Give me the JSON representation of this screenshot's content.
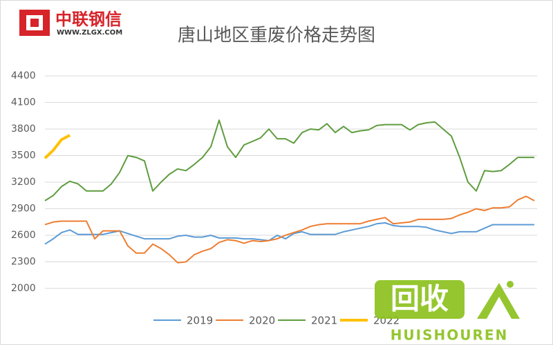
{
  "logo": {
    "name": "中联钢信",
    "url": "WWW.ZLGX.COM"
  },
  "watermark": {
    "mark": "回收",
    "brand": "HUISHOUREN"
  },
  "chart_data": {
    "type": "line",
    "title": "唐山地区重废价格走势图",
    "categories": [
      null,
      null,
      null,
      null,
      null,
      null,
      null,
      null,
      null,
      null,
      null,
      null,
      null,
      null,
      null,
      null,
      null,
      null,
      null,
      null,
      null,
      null,
      null,
      null,
      null,
      null,
      null,
      null,
      null,
      null,
      null,
      null,
      null,
      null,
      null,
      null,
      null,
      null,
      null,
      null,
      null,
      null,
      null,
      null,
      null,
      null,
      null,
      null,
      null,
      null,
      null,
      null,
      null,
      null,
      null,
      null,
      null,
      null,
      null,
      null
    ],
    "ylim": [
      2000,
      4400
    ],
    "yticks": [
      2000,
      2300,
      2600,
      2900,
      3200,
      3500,
      3800,
      4100,
      4400
    ],
    "grid": true,
    "legend": "bottom",
    "series": [
      {
        "name": "2019",
        "color": "#5b9bd5",
        "values": [
          2500,
          2560,
          2630,
          2660,
          2610,
          2610,
          2610,
          2610,
          2630,
          2650,
          2620,
          2590,
          2560,
          2560,
          2560,
          2560,
          2590,
          2600,
          2580,
          2580,
          2600,
          2570,
          2570,
          2570,
          2560,
          2560,
          2550,
          2540,
          2600,
          2560,
          2620,
          2640,
          2610,
          2610,
          2610,
          2610,
          2640,
          2660,
          2680,
          2700,
          2730,
          2740,
          2710,
          2700,
          2700,
          2700,
          2690,
          2660,
          2640,
          2620,
          2640,
          2640,
          2640,
          2680,
          2720,
          2720,
          2720,
          2720,
          2720,
          2720
        ]
      },
      {
        "name": "2020",
        "color": "#ed7d31",
        "values": [
          2720,
          2750,
          2760,
          2760,
          2760,
          2760,
          2560,
          2650,
          2650,
          2650,
          2480,
          2400,
          2400,
          2500,
          2450,
          2380,
          2290,
          2300,
          2380,
          2420,
          2450,
          2520,
          2550,
          2540,
          2510,
          2540,
          2530,
          2540,
          2560,
          2600,
          2630,
          2660,
          2700,
          2720,
          2730,
          2730,
          2730,
          2730,
          2730,
          2760,
          2780,
          2800,
          2730,
          2740,
          2750,
          2780,
          2780,
          2780,
          2780,
          2790,
          2830,
          2860,
          2900,
          2880,
          2910,
          2910,
          2920,
          3000,
          3040,
          2990
        ]
      },
      {
        "name": "2021",
        "color": "#5e9c3e",
        "values": [
          2990,
          3050,
          3150,
          3210,
          3180,
          3100,
          3100,
          3100,
          3180,
          3310,
          3500,
          3480,
          3440,
          3100,
          3200,
          3290,
          3350,
          3330,
          3400,
          3480,
          3600,
          3900,
          3600,
          3480,
          3620,
          3660,
          3700,
          3800,
          3690,
          3690,
          3640,
          3760,
          3800,
          3790,
          3860,
          3760,
          3830,
          3760,
          3780,
          3790,
          3840,
          3850,
          3850,
          3850,
          3790,
          3850,
          3870,
          3880,
          3800,
          3720,
          3480,
          3200,
          3100,
          3330,
          3320,
          3330,
          3400,
          3480,
          3480,
          3480
        ]
      },
      {
        "name": "2022",
        "color": "#ffc000",
        "values": [
          3470,
          3560,
          3680,
          3730,
          null,
          null,
          null,
          null,
          null,
          null,
          null,
          null,
          null,
          null,
          null,
          null,
          null,
          null,
          null,
          null,
          null,
          null,
          null,
          null,
          null,
          null,
          null,
          null,
          null,
          null,
          null,
          null,
          null,
          null,
          null,
          null,
          null,
          null,
          null,
          null,
          null,
          null,
          null,
          null,
          null,
          null,
          null,
          null,
          null,
          null,
          null,
          null,
          null,
          null,
          null,
          null,
          null,
          null,
          null,
          null
        ]
      }
    ]
  }
}
